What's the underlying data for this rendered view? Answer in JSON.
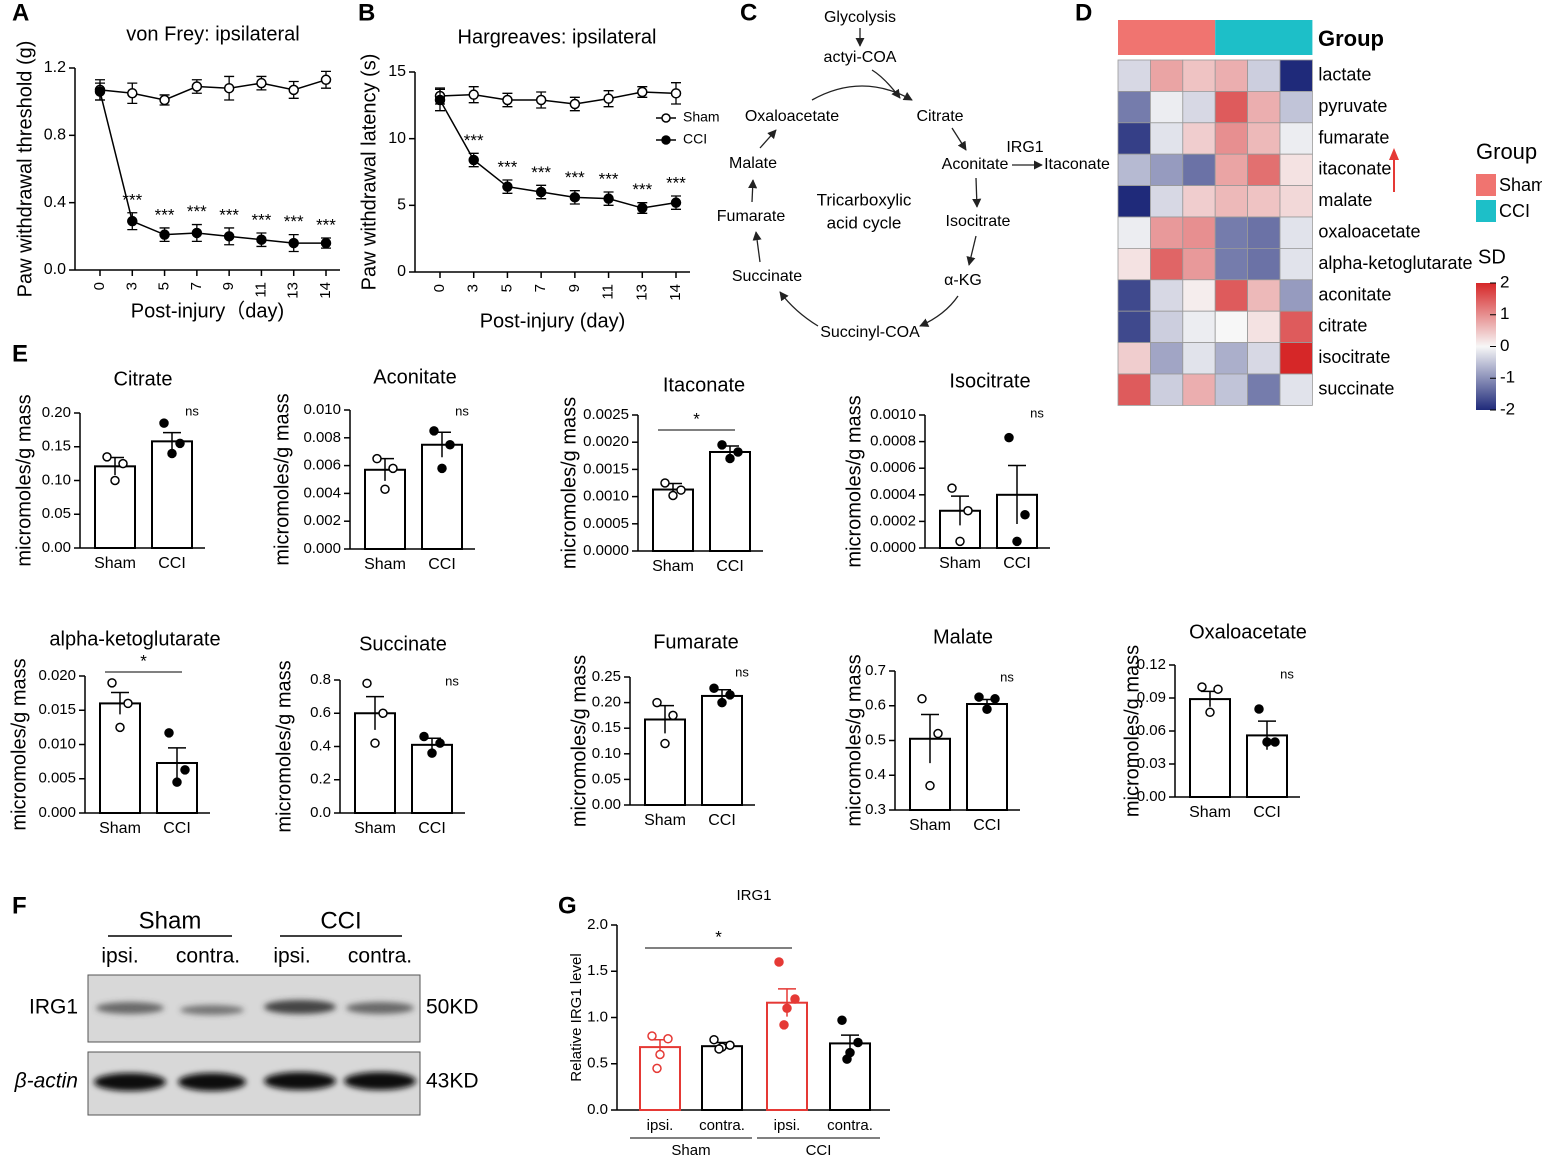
{
  "panel_labels": [
    "A",
    "B",
    "C",
    "D",
    "E",
    "F",
    "G"
  ],
  "chart_data": [
    {
      "type": "line",
      "title": "von Frey: ipsilateral",
      "ylabel": "Paw withdrawal threshold (g)",
      "xlabel": "Post-injury（day)",
      "categories": [
        "0",
        "3",
        "5",
        "7",
        "9",
        "11",
        "13",
        "14"
      ],
      "ylim": [
        0,
        1.2
      ],
      "yticks": [
        {
          "value": 0,
          "label": "0.0"
        },
        0.4,
        0.8,
        1.2
      ],
      "series": [
        {
          "name": "Sham",
          "color": "#000000",
          "fill": "#ffffff",
          "values": [
            1.07,
            1.05,
            1.01,
            1.09,
            1.08,
            1.11,
            1.07,
            1.13
          ],
          "errors": [
            0.06,
            0.06,
            0.03,
            0.04,
            0.07,
            0.04,
            0.05,
            0.05
          ]
        },
        {
          "name": "CCI",
          "color": "#000000",
          "fill": "#000000",
          "values": [
            1.06,
            0.29,
            0.21,
            0.22,
            0.2,
            0.18,
            0.16,
            0.16
          ],
          "errors": [
            0.05,
            0.05,
            0.04,
            0.05,
            0.05,
            0.04,
            0.05,
            0.03
          ]
        }
      ],
      "annotations": [
        null,
        "***",
        "***",
        "***",
        "***",
        "***",
        "***",
        "***"
      ]
    },
    {
      "type": "line",
      "title": "Hargreaves: ipsilateral",
      "ylabel": "Paw withdrawal latency (s)",
      "xlabel": "Post-injury (day)",
      "categories": [
        "0",
        "3",
        "5",
        "7",
        "9",
        "11",
        "13",
        "14"
      ],
      "ylim": [
        0,
        15
      ],
      "yticks": [
        0,
        5,
        10,
        15
      ],
      "legend": "upper right",
      "series": [
        {
          "name": "Sham",
          "color": "#000000",
          "fill": "#ffffff",
          "values": [
            13.2,
            13.3,
            12.9,
            12.9,
            12.6,
            13,
            13.5,
            13.4
          ],
          "errors": [
            0.6,
            0.6,
            0.5,
            0.6,
            0.5,
            0.6,
            0.4,
            0.8
          ]
        },
        {
          "name": "CCI",
          "color": "#000000",
          "fill": "#000000",
          "values": [
            12.9,
            8.4,
            6.4,
            6,
            5.6,
            5.5,
            4.8,
            5.2
          ],
          "errors": [
            0.8,
            0.5,
            0.5,
            0.5,
            0.5,
            0.5,
            0.4,
            0.5
          ]
        }
      ],
      "annotations": [
        null,
        "***",
        "***",
        "***",
        "***",
        "***",
        "***",
        "***"
      ]
    },
    {
      "type": "bar",
      "title": "Citrate",
      "ylabel": "micromoles/g  mass",
      "categories": [
        "Sham",
        "CCI"
      ],
      "ylim": [
        0,
        0.2
      ],
      "yticks": [
        {
          "value": 0,
          "label": "0.00"
        },
        0.05,
        {
          "value": 0.1,
          "label": "0.10"
        },
        0.15,
        {
          "value": 0.2,
          "label": "0.20"
        }
      ],
      "values": [
        0.121,
        0.158
      ],
      "errors": [
        0.013,
        0.013
      ],
      "points": [
        [
          0.135,
          0.125,
          0.1
        ],
        [
          0.185,
          0.155,
          0.14
        ]
      ],
      "color": "#000000",
      "point_fill": [
        "#ffffff",
        "#000000"
      ],
      "sig": "ns",
      "bracket": false
    },
    {
      "type": "bar",
      "title": "Aconitate",
      "ylabel": "micromoles/g  mass",
      "categories": [
        "Sham",
        "CCI"
      ],
      "ylim": [
        0,
        0.01
      ],
      "yticks": [
        {
          "value": 0,
          "label": "0.000"
        },
        0.002,
        0.004,
        0.006,
        0.008,
        {
          "value": 0.01,
          "label": "0.010"
        }
      ],
      "values": [
        0.0057,
        0.0075
      ],
      "errors": [
        0.0008,
        0.0009
      ],
      "points": [
        [
          0.0065,
          0.0058,
          0.0043
        ],
        [
          0.0085,
          0.0075,
          0.0058
        ]
      ],
      "color": "#000000",
      "point_fill": [
        "#ffffff",
        "#000000"
      ],
      "sig": "ns",
      "bracket": false
    },
    {
      "type": "bar",
      "title": "Itaconate",
      "ylabel": "micromoles/g  mass",
      "categories": [
        "Sham",
        "CCI"
      ],
      "ylim": [
        0,
        0.0025
      ],
      "yticks": [
        {
          "value": 0,
          "label": "0.0000"
        },
        0.0005,
        {
          "value": 0.001,
          "label": "0.0010"
        },
        0.0015,
        {
          "value": 0.002,
          "label": "0.0020"
        },
        0.0025
      ],
      "values": [
        0.00113,
        0.00182
      ],
      "errors": [
        0.00011,
        0.00011
      ],
      "points": [
        [
          0.00125,
          0.00112,
          0.00102
        ],
        [
          0.00195,
          0.00182,
          0.0017
        ]
      ],
      "color": "#000000",
      "point_fill": [
        "#ffffff",
        "#000000"
      ],
      "sig": "*",
      "bracket": true
    },
    {
      "type": "bar",
      "title": "Isocitrate",
      "ylabel": "micromoles/g  mass",
      "categories": [
        "Sham",
        "CCI"
      ],
      "ylim": [
        0,
        0.001
      ],
      "yticks": [
        {
          "value": 0,
          "label": "0.0000"
        },
        0.0002,
        0.0004,
        0.0006,
        0.0008,
        {
          "value": 0.001,
          "label": "0.0010"
        }
      ],
      "values": [
        0.00028,
        0.0004
      ],
      "errors": [
        0.00011,
        0.00022
      ],
      "points": [
        [
          0.00045,
          0.00028,
          5e-05
        ],
        [
          0.00083,
          0.00025,
          5e-05
        ]
      ],
      "color": "#000000",
      "point_fill": [
        "#ffffff",
        "#000000"
      ],
      "sig": "ns",
      "bracket": false
    },
    {
      "type": "bar",
      "title": "alpha-ketoglutarate",
      "ylabel": "micromoles/g  mass",
      "categories": [
        "Sham",
        "CCI"
      ],
      "ylim": [
        0,
        0.02
      ],
      "yticks": [
        {
          "value": 0,
          "label": "0.000"
        },
        0.005,
        {
          "value": 0.01,
          "label": "0.010"
        },
        0.015,
        {
          "value": 0.02,
          "label": "0.020"
        }
      ],
      "values": [
        0.016,
        0.0073
      ],
      "errors": [
        0.0016,
        0.0022
      ],
      "points": [
        [
          0.019,
          0.016,
          0.0125
        ],
        [
          0.0117,
          0.0063,
          0.0045
        ]
      ],
      "color": "#000000",
      "point_fill": [
        "#ffffff",
        "#000000"
      ],
      "sig": "*",
      "bracket": true
    },
    {
      "type": "bar",
      "title": "Succinate",
      "ylabel": "micromoles/g  mass",
      "categories": [
        "Sham",
        "CCI"
      ],
      "ylim": [
        0,
        0.8
      ],
      "yticks": [
        {
          "value": 0,
          "label": "0.0"
        },
        0.2,
        0.4,
        0.6,
        0.8
      ],
      "values": [
        0.6,
        0.41
      ],
      "errors": [
        0.1,
        0.04
      ],
      "points": [
        [
          0.78,
          0.6,
          0.42
        ],
        [
          0.46,
          0.42,
          0.36
        ]
      ],
      "color": "#000000",
      "point_fill": [
        "#ffffff",
        "#000000"
      ],
      "sig": "ns",
      "bracket": false
    },
    {
      "type": "bar",
      "title": "Fumarate",
      "ylabel": "micromoles/g  mass",
      "categories": [
        "Sham",
        "CCI"
      ],
      "ylim": [
        0,
        0.25
      ],
      "yticks": [
        {
          "value": 0,
          "label": "0.00"
        },
        0.05,
        {
          "value": 0.1,
          "label": "0.10"
        },
        0.15,
        {
          "value": 0.2,
          "label": "0.20"
        },
        0.25
      ],
      "values": [
        0.167,
        0.213
      ],
      "errors": [
        0.027,
        0.012
      ],
      "points": [
        [
          0.2,
          0.175,
          0.12
        ],
        [
          0.228,
          0.215,
          0.2
        ]
      ],
      "color": "#000000",
      "point_fill": [
        "#ffffff",
        "#000000"
      ],
      "sig": "ns",
      "bracket": false
    },
    {
      "type": "bar",
      "title": "Malate",
      "ylabel": "micromoles/g  mass",
      "categories": [
        "Sham",
        "CCI"
      ],
      "ylim": [
        0.3,
        0.7
      ],
      "yticks": [
        0.3,
        0.4,
        0.5,
        0.6,
        0.7
      ],
      "values": [
        0.505,
        0.605
      ],
      "errors": [
        0.07,
        0.013
      ],
      "points": [
        [
          0.62,
          0.52,
          0.37
        ],
        [
          0.625,
          0.62,
          0.59
        ]
      ],
      "color": "#000000",
      "point_fill": [
        "#ffffff",
        "#000000"
      ],
      "sig": "ns",
      "bracket": false
    },
    {
      "type": "bar",
      "title": "Oxaloacetate",
      "ylabel": "micromoles/g  mass",
      "categories": [
        "Sham",
        "CCI"
      ],
      "ylim": [
        0,
        0.12
      ],
      "yticks": [
        {
          "value": 0,
          "label": "0.00"
        },
        0.03,
        0.06,
        0.09,
        0.12
      ],
      "values": [
        0.089,
        0.056
      ],
      "errors": [
        0.007,
        0.013
      ],
      "points": [
        [
          0.1,
          0.098,
          0.077
        ],
        [
          0.08,
          0.05,
          0.05
        ]
      ],
      "color": "#000000",
      "point_fill": [
        "#ffffff",
        "#000000"
      ],
      "sig": "ns",
      "bracket": false
    },
    {
      "type": "bar",
      "title": "IRG1",
      "ylabel": "Relative IRG1 level",
      "categories": [
        "ipsi.",
        "contra.",
        "ipsi.",
        "contra."
      ],
      "groups": [
        "Sham",
        "CCI"
      ],
      "ylim": [
        0,
        2
      ],
      "yticks": [
        {
          "value": 0,
          "label": "0.0"
        },
        0.5,
        {
          "value": 1,
          "label": "1.0"
        },
        1.5,
        {
          "value": 2,
          "label": "2.0"
        }
      ],
      "values": [
        0.68,
        0.69,
        1.16,
        0.72
      ],
      "errors": [
        0.08,
        0.04,
        0.15,
        0.09
      ],
      "points": [
        [
          0.8,
          0.77,
          0.6,
          0.45
        ],
        [
          0.76,
          0.7,
          0.68,
          0.66
        ],
        [
          1.6,
          1.2,
          1.1,
          0.92
        ],
        [
          0.97,
          0.73,
          0.62,
          0.55
        ]
      ],
      "colors": [
        "#e53935",
        "#000000",
        "#e53935",
        "#000000"
      ],
      "point_fill": [
        "#ffffff",
        "#ffffff",
        "#e53935",
        "#000000"
      ],
      "sig": "*",
      "bracket": true
    },
    {
      "type": "heatmap",
      "annotation_label": "Group",
      "legend_title": "Group",
      "groups": [
        {
          "name": "Sham",
          "color": "#f07470",
          "columns": 3
        },
        {
          "name": "CCI",
          "color": "#1dbfc8",
          "columns": 3
        }
      ],
      "rows": [
        "lactate",
        "pyruvate",
        "fumarate",
        "itaconate",
        "malate",
        "oxaloacetate",
        "alpha-ketoglutarate",
        "aconitate",
        "citrate",
        "isocitrate",
        "succinate"
      ],
      "values": [
        [
          -0.3,
          0.8,
          0.5,
          0.7,
          -0.4,
          -2
        ],
        [
          -1.2,
          -0.1,
          -0.3,
          1.5,
          0.7,
          -0.5
        ],
        [
          -1.8,
          -0.2,
          0.4,
          1,
          0.6,
          -0.1
        ],
        [
          -0.6,
          -0.9,
          -1.3,
          0.8,
          1.3,
          0.2
        ],
        [
          -2,
          -0.3,
          0.4,
          0.6,
          0.5,
          0.3
        ],
        [
          -0.1,
          0.9,
          1,
          -1.2,
          -1.3,
          -0.2
        ],
        [
          0.2,
          1.4,
          0.9,
          -1.2,
          -1.3,
          -0.2
        ],
        [
          -1.7,
          -0.3,
          0.1,
          1.5,
          0.6,
          -0.9
        ],
        [
          -1.7,
          -0.4,
          -0.1,
          0,
          0.2,
          1.5
        ],
        [
          0.4,
          -0.8,
          -0.2,
          -0.7,
          -0.3,
          2
        ],
        [
          1.5,
          -0.4,
          0.7,
          -0.5,
          -1.2,
          -0.2
        ]
      ],
      "colorbar_title": "SD",
      "zlim": [
        -2,
        2
      ],
      "zticks": [
        2,
        1,
        0,
        -1,
        -2
      ],
      "colors": [
        "#1f2a7a",
        "#f7f7f7",
        "#d62728"
      ]
    }
  ],
  "diagram": {
    "nodes": [
      "Glycolysis",
      "actyi-COA",
      "Citrate",
      "Aconitate",
      "IRG1",
      "Itaconate",
      "Isocitrate",
      "α-KG",
      "Succinyl-COA",
      "Succinate",
      "Fumarate",
      "Malate",
      "Oxaloacetate"
    ],
    "center": [
      "Tricarboxylic",
      "acid cycle"
    ]
  },
  "blot": {
    "groups": [
      "Sham",
      "CCI"
    ],
    "lanes": [
      "ipsi.",
      "contra.",
      "ipsi.",
      "contra."
    ],
    "proteins": [
      "IRG1",
      "β-actin"
    ],
    "sizes": [
      "50KD",
      "43KD"
    ]
  }
}
